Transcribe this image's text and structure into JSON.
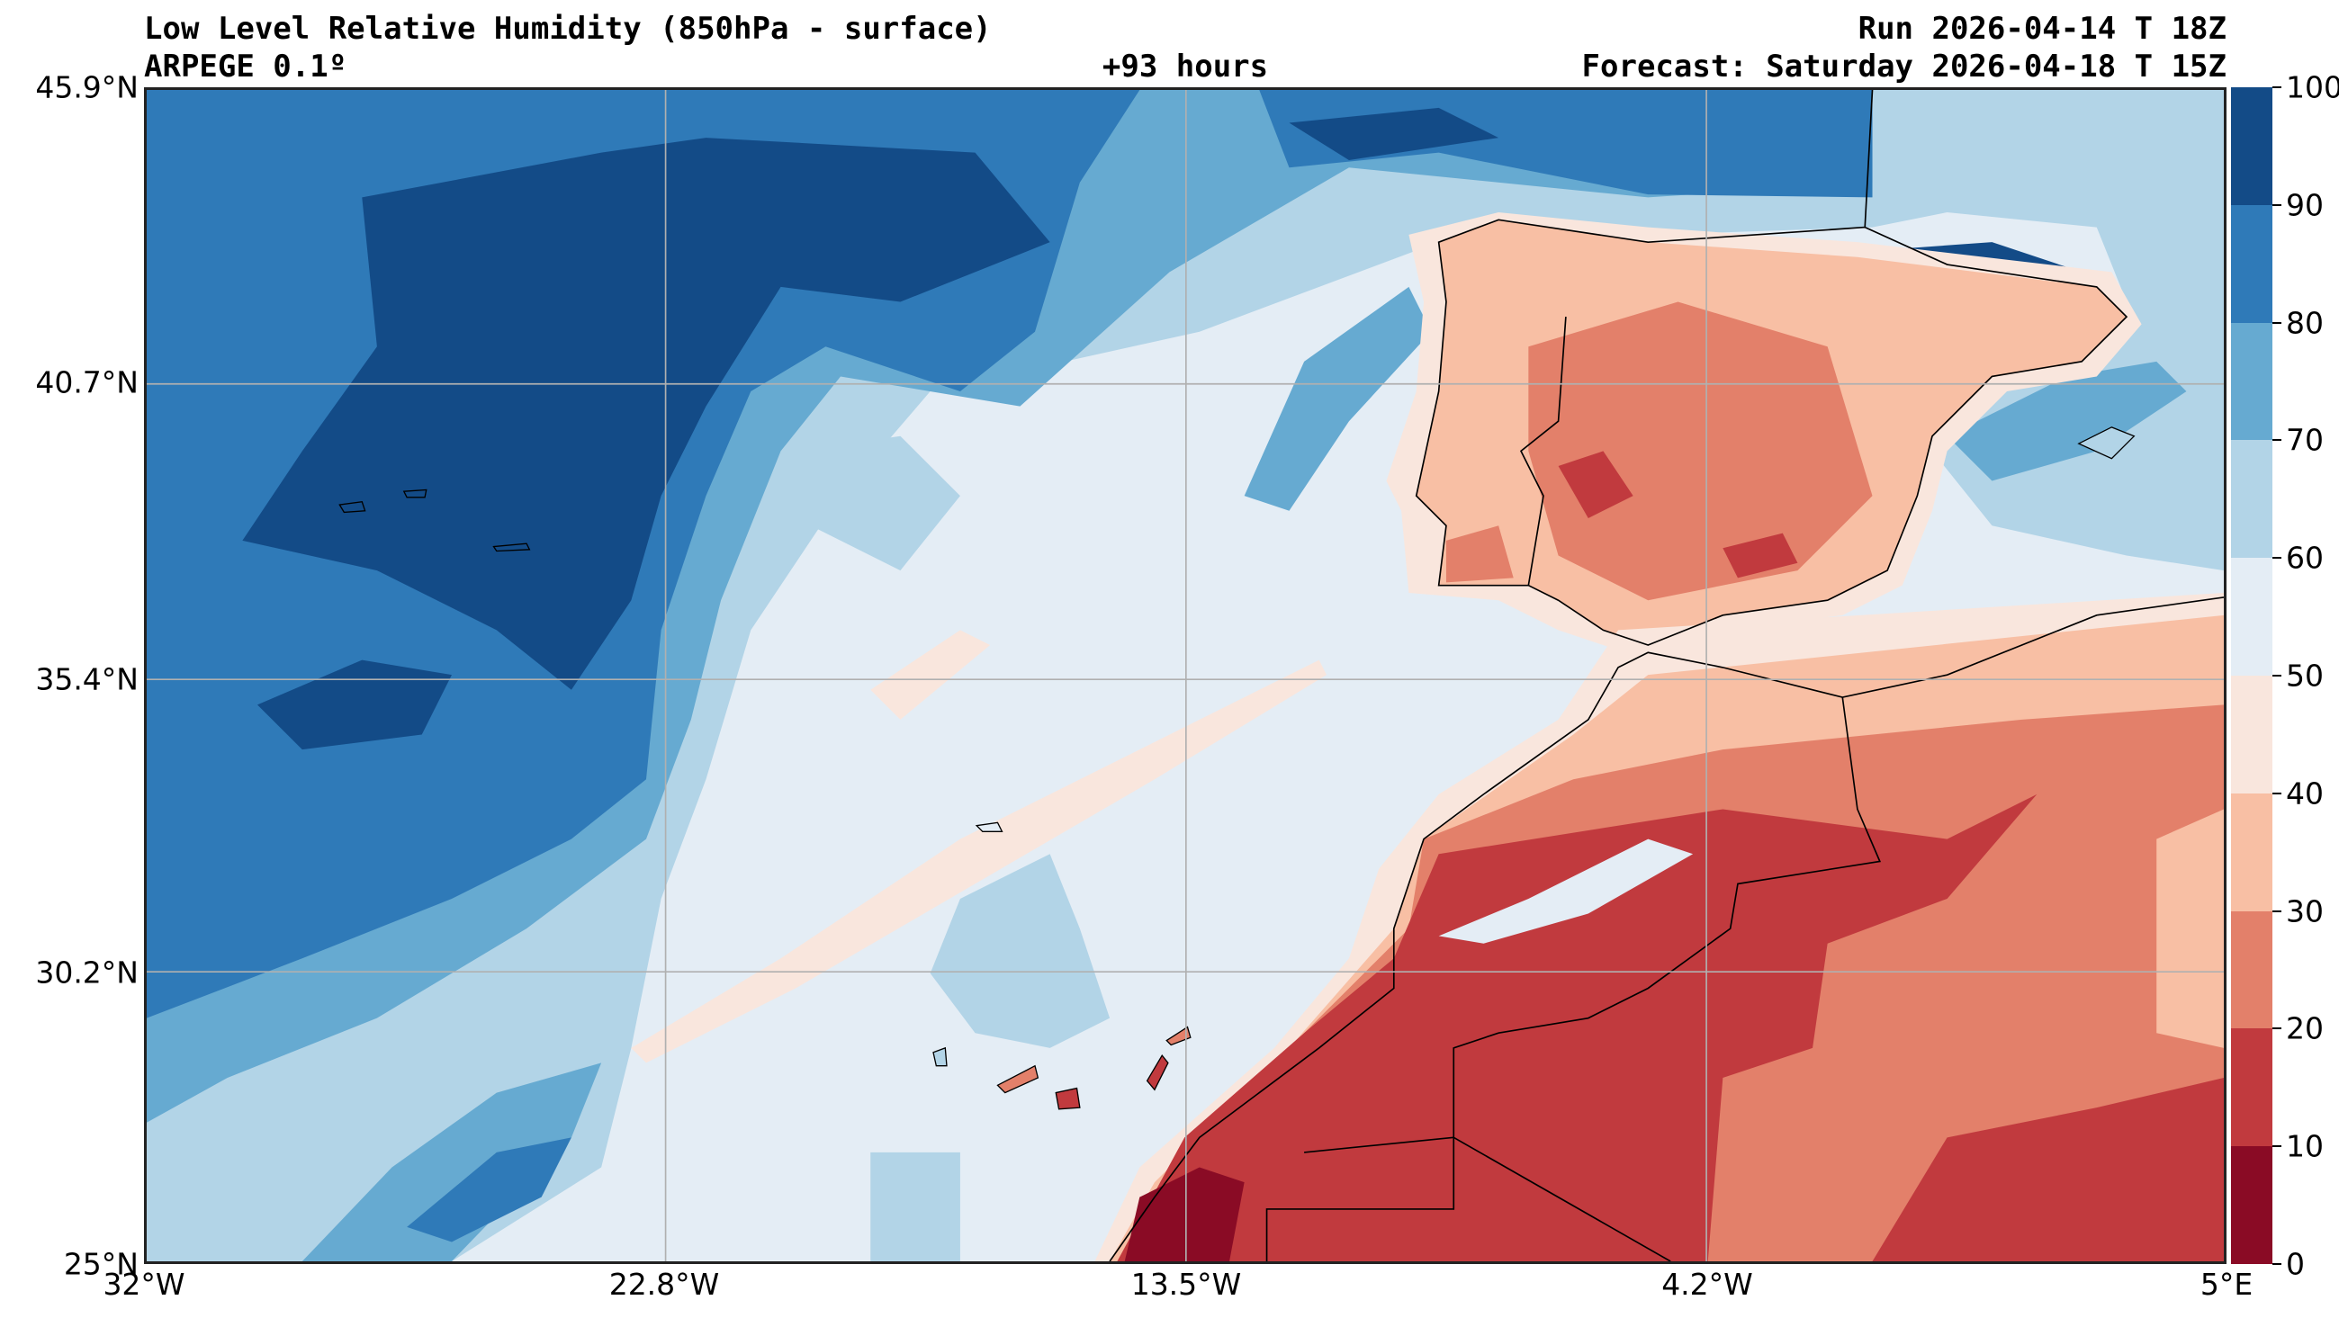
{
  "header": {
    "title": "Low Level Relative Humidity (850hPa - surface)",
    "model": "ARPEGE 0.1º",
    "lead": "+93 hours",
    "run": "Run 2026-04-14 T 18Z",
    "forecast": "Forecast: Saturday 2026-04-18 T 15Z"
  },
  "chart_data": {
    "type": "heatmap",
    "title": "Low Level Relative Humidity (850hPa - surface)",
    "lat_ticks": [
      "45.9°N",
      "40.7°N",
      "35.4°N",
      "30.2°N",
      "25°N"
    ],
    "lon_ticks": [
      "32°W",
      "22.8°W",
      "13.5°W",
      "4.2°W",
      "5°E"
    ],
    "lat_range": [
      25,
      45.9
    ],
    "lon_range": [
      -32,
      5
    ],
    "grid": true,
    "colorbar": {
      "ticks": [
        "0",
        "10",
        "20",
        "30",
        "40",
        "50",
        "60",
        "70",
        "80",
        "90",
        "100"
      ],
      "levels": [
        0,
        10,
        20,
        30,
        40,
        50,
        60,
        70,
        80,
        90,
        100
      ],
      "colors": [
        "#8a0b25",
        "#c13a3e",
        "#e3806a",
        "#f8bfa4",
        "#f9e6dd",
        "#e4edf5",
        "#b2d4e7",
        "#66aad1",
        "#2f7ab8",
        "#134b87"
      ],
      "placement": "right"
    }
  }
}
